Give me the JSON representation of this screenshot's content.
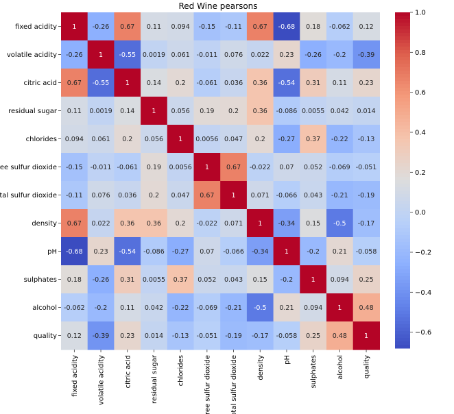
{
  "chart_data": {
    "type": "heatmap",
    "title": "Red Wine pearsons",
    "xlabel": "",
    "ylabel": "",
    "labels": [
      "fixed acidity",
      "volatile acidity",
      "citric acid",
      "residual sugar",
      "chlorides",
      "free sulfur dioxide",
      "total sulfur dioxide",
      "density",
      "pH",
      "sulphates",
      "alcohol",
      "quality"
    ],
    "matrix": [
      [
        "1",
        "-0.26",
        "0.67",
        "0.11",
        "0.094",
        "-0.15",
        "-0.11",
        "0.67",
        "-0.68",
        "0.18",
        "-0.062",
        "0.12"
      ],
      [
        "-0.26",
        "1",
        "-0.55",
        "0.0019",
        "0.061",
        "-0.011",
        "0.076",
        "0.022",
        "0.23",
        "-0.26",
        "-0.2",
        "-0.39"
      ],
      [
        "0.67",
        "-0.55",
        "1",
        "0.14",
        "0.2",
        "-0.061",
        "0.036",
        "0.36",
        "-0.54",
        "0.31",
        "0.11",
        "0.23"
      ],
      [
        "0.11",
        "0.0019",
        "0.14",
        "1",
        "0.056",
        "0.19",
        "0.2",
        "0.36",
        "-0.086",
        "0.0055",
        "0.042",
        "0.014"
      ],
      [
        "0.094",
        "0.061",
        "0.2",
        "0.056",
        "1",
        "0.0056",
        "0.047",
        "0.2",
        "-0.27",
        "0.37",
        "-0.22",
        "-0.13"
      ],
      [
        "-0.15",
        "-0.011",
        "-0.061",
        "0.19",
        "0.0056",
        "1",
        "0.67",
        "-0.022",
        "0.07",
        "0.052",
        "-0.069",
        "-0.051"
      ],
      [
        "-0.11",
        "0.076",
        "0.036",
        "0.2",
        "0.047",
        "0.67",
        "1",
        "0.071",
        "-0.066",
        "0.043",
        "-0.21",
        "-0.19"
      ],
      [
        "0.67",
        "0.022",
        "0.36",
        "0.36",
        "0.2",
        "-0.022",
        "0.071",
        "1",
        "-0.34",
        "0.15",
        "-0.5",
        "-0.17"
      ],
      [
        "-0.68",
        "0.23",
        "-0.54",
        "-0.086",
        "-0.27",
        "0.07",
        "-0.066",
        "-0.34",
        "1",
        "-0.2",
        "0.21",
        "-0.058"
      ],
      [
        "0.18",
        "-0.26",
        "0.31",
        "0.0055",
        "0.37",
        "0.052",
        "0.043",
        "0.15",
        "-0.2",
        "1",
        "0.094",
        "0.25"
      ],
      [
        "-0.062",
        "-0.2",
        "0.11",
        "0.042",
        "-0.22",
        "-0.069",
        "-0.21",
        "-0.5",
        "0.21",
        "0.094",
        "1",
        "0.48"
      ],
      [
        "0.12",
        "-0.39",
        "0.23",
        "0.014",
        "-0.13",
        "-0.051",
        "-0.19",
        "-0.17",
        "-0.058",
        "0.25",
        "0.48",
        "1"
      ]
    ],
    "colorbar": {
      "min": -0.68,
      "max": 1.0,
      "colormap": "coolwarm",
      "ticks": [
        "1.0",
        "0.8",
        "0.6",
        "0.4",
        "0.2",
        "0.0",
        "−0.2",
        "−0.4",
        "−0.6"
      ],
      "tick_values": [
        1.0,
        0.8,
        0.6,
        0.4,
        0.2,
        0.0,
        -0.2,
        -0.4,
        -0.6
      ]
    },
    "annotations": true,
    "grid": false
  }
}
